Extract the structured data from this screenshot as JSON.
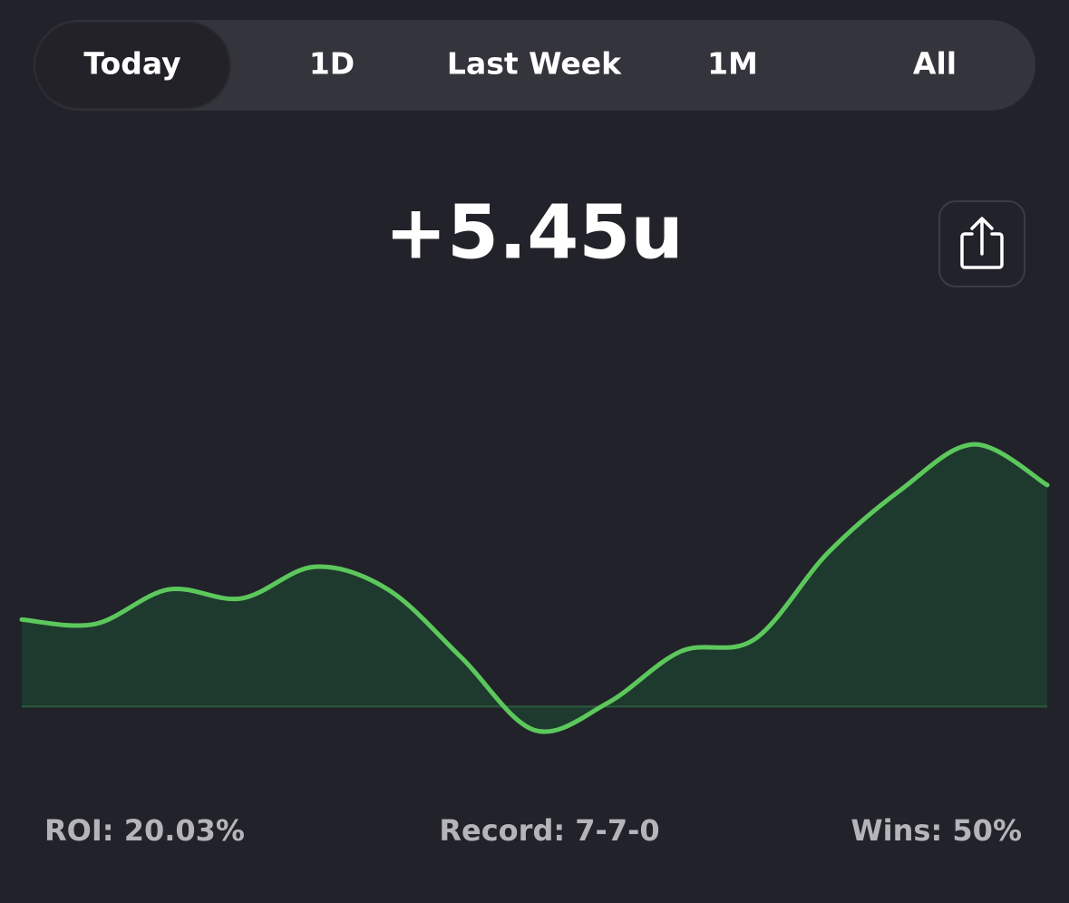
{
  "tabs": [
    "Today",
    "1D",
    "Last Week",
    "1M",
    "All"
  ],
  "selected_tab": 0,
  "total": "+5.45u",
  "stats": [
    "ROI: 20.03%",
    "Record: 7-7-0",
    "Wins: 50%"
  ],
  "chart_data": {
    "type": "line",
    "values": [
      2.14,
      2.03,
      2.88,
      2.66,
      3.44,
      2.88,
      1.21,
      -0.58,
      0.09,
      1.36,
      1.65,
      3.77,
      5.33,
      6.45,
      5.45
    ],
    "ylim": [
      -2,
      10
    ],
    "color": "#5cc85c",
    "fill": "#1e3a2e"
  }
}
